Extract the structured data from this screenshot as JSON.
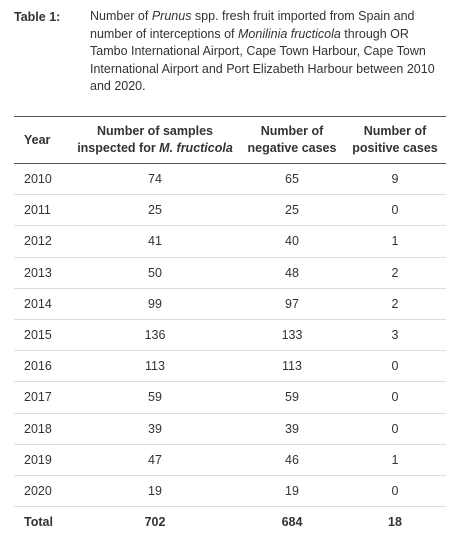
{
  "caption": {
    "label": "Table 1:",
    "parts": [
      "Number of ",
      "Prunus",
      " spp. fresh fruit imported from Spain and number of interceptions of ",
      "Monilinia fructicola",
      " through OR Tambo International Airport, Cape Town Harbour, Cape Town International Airport and Port Elizabeth Harbour between 2010 and 2020."
    ]
  },
  "table": {
    "header": [
      "Year",
      [
        "Number of samples inspected for ",
        "M. fructicola"
      ],
      "Number of negative cases",
      "Number of positive cases"
    ],
    "rows": [
      [
        2010,
        74,
        65,
        9
      ],
      [
        2011,
        25,
        25,
        0
      ],
      [
        2012,
        41,
        40,
        1
      ],
      [
        2013,
        50,
        48,
        2
      ],
      [
        2014,
        99,
        97,
        2
      ],
      [
        2015,
        136,
        133,
        3
      ],
      [
        2016,
        113,
        113,
        0
      ],
      [
        2017,
        59,
        59,
        0
      ],
      [
        2018,
        39,
        39,
        0
      ],
      [
        2019,
        47,
        46,
        1
      ],
      [
        2020,
        19,
        19,
        0
      ]
    ],
    "total": [
      "Total",
      702,
      684,
      18
    ]
  }
}
